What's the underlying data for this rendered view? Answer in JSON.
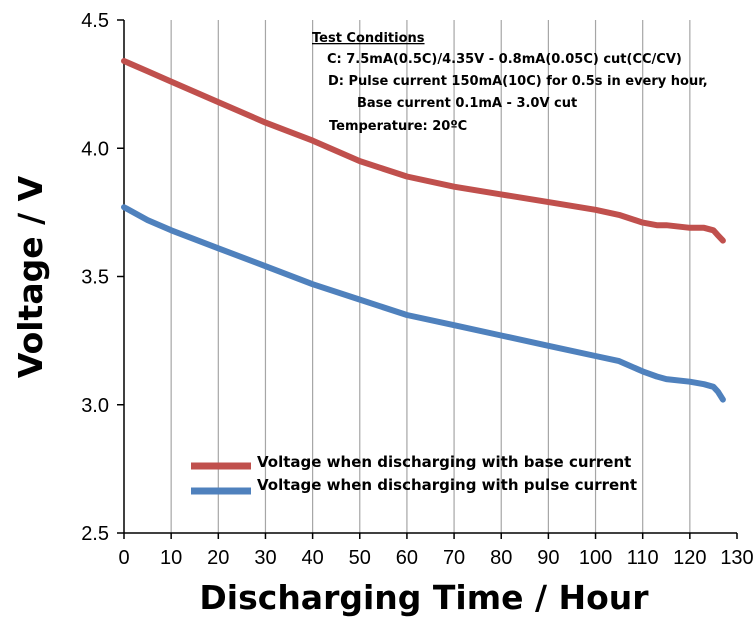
{
  "chart_data": {
    "type": "line",
    "title": "",
    "xlabel": "Discharging Time / Hour",
    "ylabel": "Voltage / V",
    "xlim": [
      0,
      130
    ],
    "ylim": [
      2.5,
      4.5
    ],
    "x_ticks": [
      "0",
      "10",
      "20",
      "30",
      "40",
      "50",
      "60",
      "70",
      "80",
      "90",
      "100",
      "110",
      "120",
      "130"
    ],
    "y_ticks": [
      "2.5",
      "3.0",
      "3.5",
      "4.0",
      "4.5"
    ],
    "grid": "vertical",
    "legend_position": "lower-center",
    "series": [
      {
        "name": "Voltage when discharging with base current",
        "color": "#C0504D",
        "x": [
          0,
          5,
          10,
          20,
          30,
          40,
          50,
          60,
          70,
          80,
          90,
          100,
          105,
          110,
          113,
          115,
          120,
          123,
          125,
          126,
          127
        ],
        "y": [
          4.34,
          4.3,
          4.26,
          4.18,
          4.1,
          4.03,
          3.95,
          3.89,
          3.85,
          3.82,
          3.79,
          3.76,
          3.74,
          3.71,
          3.7,
          3.7,
          3.69,
          3.69,
          3.68,
          3.66,
          3.64
        ]
      },
      {
        "name": "Voltage when discharging with pulse current",
        "color": "#4F81BD",
        "x": [
          0,
          5,
          10,
          20,
          30,
          40,
          50,
          60,
          70,
          80,
          90,
          100,
          105,
          110,
          113,
          115,
          120,
          123,
          125,
          126,
          127
        ],
        "y": [
          3.77,
          3.72,
          3.68,
          3.61,
          3.54,
          3.47,
          3.41,
          3.35,
          3.31,
          3.27,
          3.23,
          3.19,
          3.17,
          3.13,
          3.11,
          3.1,
          3.09,
          3.08,
          3.07,
          3.05,
          3.02
        ]
      }
    ],
    "annotation": {
      "heading": "Test Conditions",
      "lines": [
        "C: 7.5mA(0.5C)/4.35V - 0.8mA(0.05C) cut(CC/CV)",
        "D: Pulse current 150mA(10C) for 0.5s in every hour,",
        "Base current 0.1mA - 3.0V cut",
        "Temperature: 20ºC"
      ]
    }
  }
}
